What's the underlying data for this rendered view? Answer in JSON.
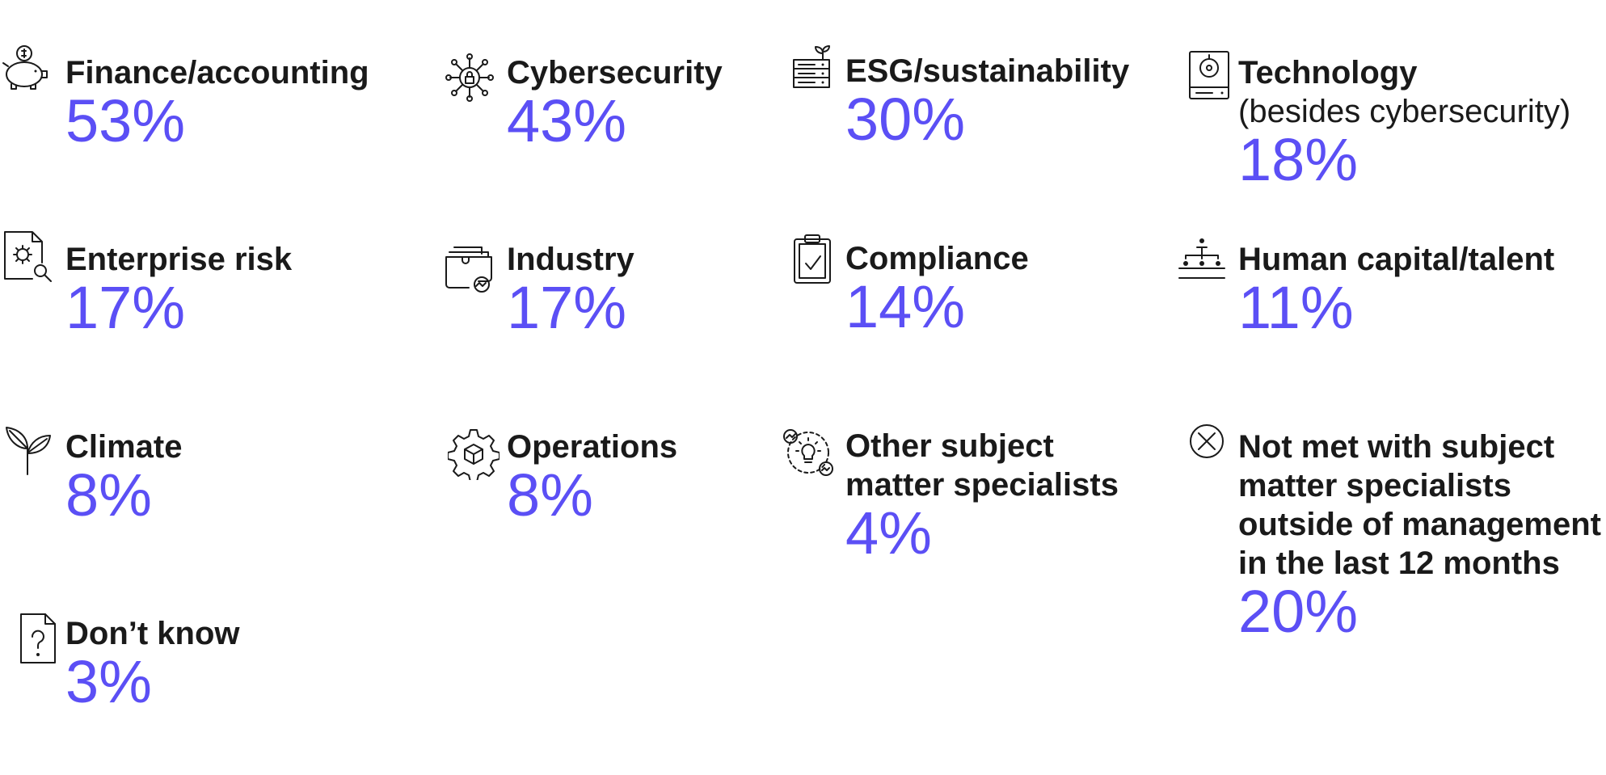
{
  "accent_color": "#5b4ff5",
  "chart_data": {
    "type": "table",
    "unit": "%",
    "items": [
      {
        "id": "finance",
        "label": "Finance/accounting",
        "value": 53,
        "display": "53%",
        "icon": "piggy-bank-icon"
      },
      {
        "id": "cyber",
        "label": "Cybersecurity",
        "value": 43,
        "display": "43%",
        "icon": "network-lock-icon"
      },
      {
        "id": "esg",
        "label": "ESG/sustainability",
        "value": 30,
        "display": "30%",
        "icon": "server-plant-icon"
      },
      {
        "id": "tech",
        "label": "Technology",
        "sublabel": "(besides cybersecurity)",
        "value": 18,
        "display": "18%",
        "icon": "hard-drive-icon"
      },
      {
        "id": "risk",
        "label": "Enterprise risk",
        "value": 17,
        "display": "17%",
        "icon": "risk-document-icon"
      },
      {
        "id": "industry",
        "label": "Industry",
        "value": 17,
        "display": "17%",
        "icon": "industry-folder-icon"
      },
      {
        "id": "compliance",
        "label": "Compliance",
        "value": 14,
        "display": "14%",
        "icon": "clipboard-check-icon"
      },
      {
        "id": "talent",
        "label": "Human capital/talent",
        "value": 11,
        "display": "11%",
        "icon": "org-chart-icon"
      },
      {
        "id": "climate",
        "label": "Climate",
        "value": 8,
        "display": "8%",
        "icon": "leaves-icon"
      },
      {
        "id": "operations",
        "label": "Operations",
        "value": 8,
        "display": "8%",
        "icon": "gear-box-icon"
      },
      {
        "id": "other",
        "label": [
          "Other subject",
          "matter specialists"
        ],
        "value": 4,
        "display": "4%",
        "icon": "lightbulb-cycle-icon"
      },
      {
        "id": "notmet",
        "label": [
          "Not met with subject",
          "matter specialists",
          "outside of management",
          "in the last 12 months"
        ],
        "value": 20,
        "display": "20%",
        "icon": "x-circle-icon"
      },
      {
        "id": "dontknow",
        "label": "Don’t know",
        "value": 3,
        "display": "3%",
        "icon": "question-document-icon"
      }
    ]
  }
}
